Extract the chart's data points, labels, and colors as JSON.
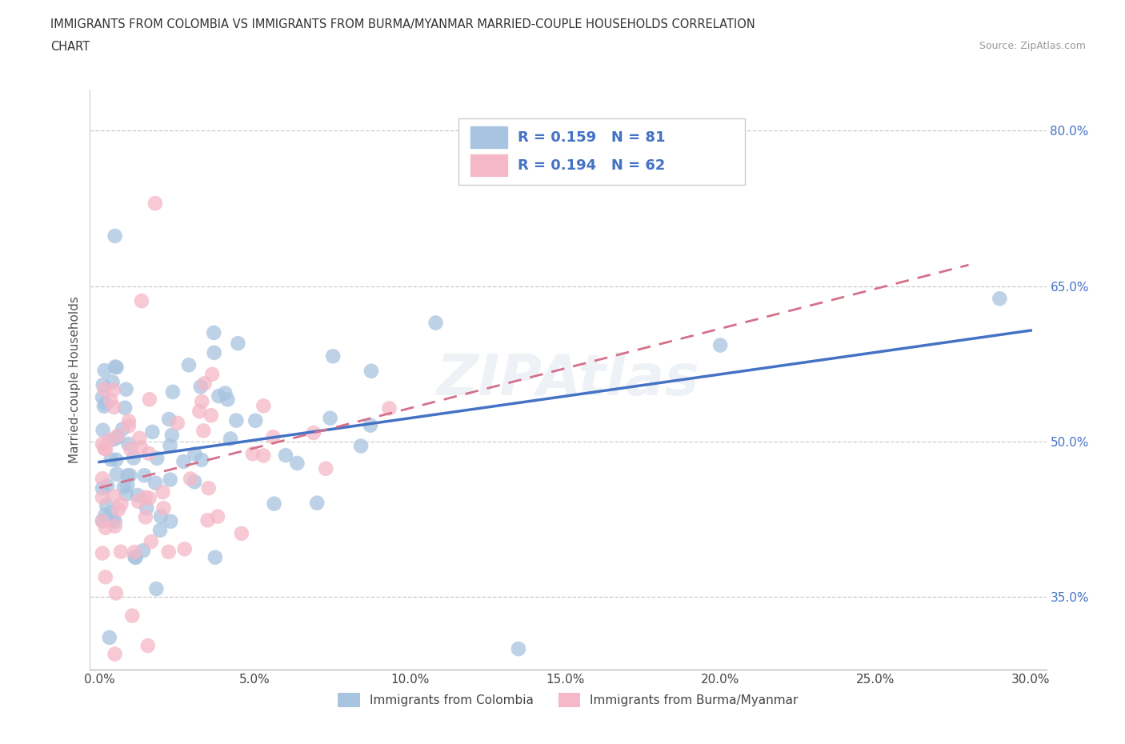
{
  "title_line1": "IMMIGRANTS FROM COLOMBIA VS IMMIGRANTS FROM BURMA/MYANMAR MARRIED-COUPLE HOUSEHOLDS CORRELATION",
  "title_line2": "CHART",
  "source": "Source: ZipAtlas.com",
  "ylabel": "Married-couple Households",
  "xlim": [
    -0.003,
    0.305
  ],
  "ylim": [
    0.28,
    0.84
  ],
  "ytick_vals": [
    0.35,
    0.5,
    0.65,
    0.8
  ],
  "ytick_labels": [
    "35.0%",
    "50.0%",
    "65.0%",
    "80.0%"
  ],
  "xtick_vals": [
    0.0,
    0.05,
    0.1,
    0.15,
    0.2,
    0.25,
    0.3
  ],
  "xtick_labels": [
    "0.0%",
    "5.0%",
    "10.0%",
    "15.0%",
    "20.0%",
    "25.0%",
    "30.0%"
  ],
  "grid_ytick_vals": [
    0.35,
    0.5,
    0.65,
    0.8
  ],
  "colombia_color": "#a8c4e0",
  "burma_color": "#f4b8c8",
  "colombia_line_color": "#4472c4",
  "burma_line_color": "#d4708a",
  "legend_text_color": "#4472c4",
  "R_colombia": 0.159,
  "N_colombia": 81,
  "R_burma": 0.194,
  "N_burma": 62,
  "seed_colombia": 42,
  "seed_burma": 99,
  "watermark": "ZIPAtlas"
}
